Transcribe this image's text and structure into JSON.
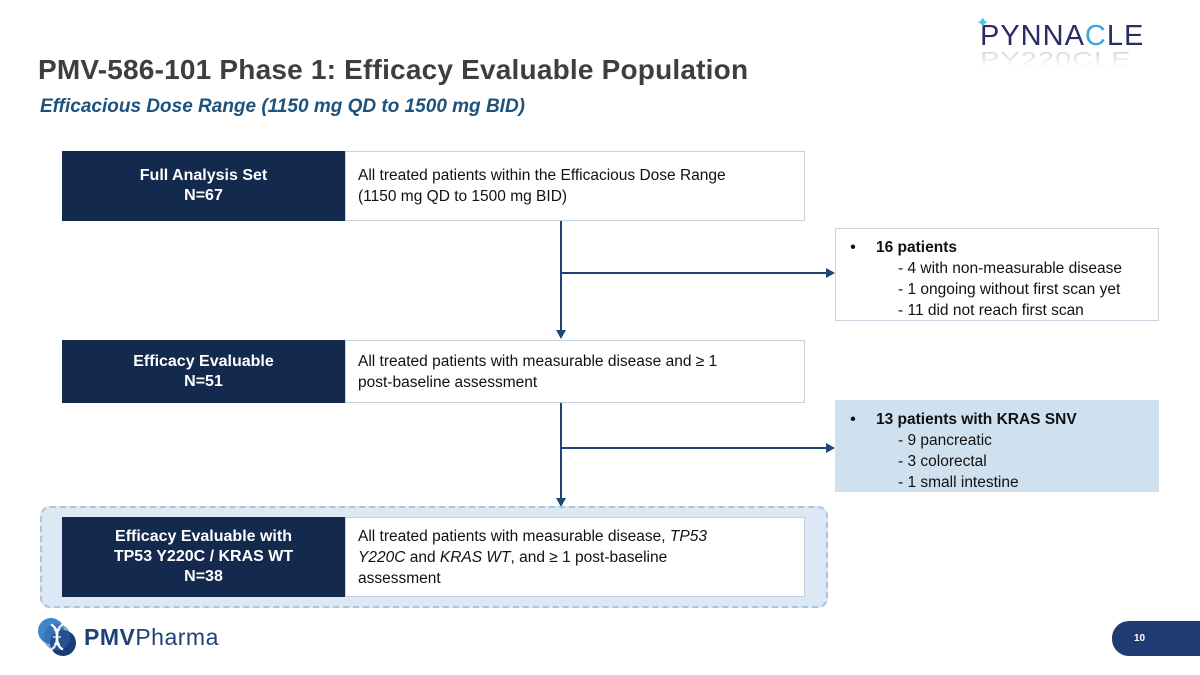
{
  "slide": {
    "title": "PMV-586-101 Phase 1: Efficacy Evaluable Population",
    "subtitle": "Efficacious Dose Range (1150 mg QD to 1500 mg BID)",
    "page_number": "10"
  },
  "logos": {
    "pynnacle": {
      "sparkle": "✦",
      "part1": "PYNNA",
      "part2": "C",
      "part3": "LE",
      "reflection": "PY220CLE"
    },
    "pmv": {
      "bold": "PMV",
      "regular": "Pharma"
    }
  },
  "flow": {
    "rows": [
      {
        "label_lines": [
          "Full Analysis Set",
          "N=67"
        ],
        "desc_lines": [
          [
            {
              "t": "All treated patients within the Efficacious Dose Range"
            }
          ],
          [
            {
              "t": "(1150 mg QD to 1500 mg BID)"
            }
          ]
        ]
      },
      {
        "label_lines": [
          "Efficacy Evaluable",
          "N=51"
        ],
        "desc_lines": [
          [
            {
              "t": "All treated patients with measurable disease and ≥ 1"
            }
          ],
          [
            {
              "t": "post-baseline assessment"
            }
          ]
        ]
      },
      {
        "label_lines": [
          "Efficacy Evaluable with",
          "TP53 Y220C / KRAS WT",
          "N=38"
        ],
        "desc_lines": [
          [
            {
              "t": "All treated patients with measurable disease, "
            },
            {
              "t": "TP53",
              "i": true
            }
          ],
          [
            {
              "t": "Y220C",
              "i": true
            },
            {
              "t": " and "
            },
            {
              "t": "KRAS WT",
              "i": true
            },
            {
              "t": ", and ≥ 1 post-baseline"
            }
          ],
          [
            {
              "t": "assessment"
            }
          ]
        ]
      }
    ],
    "callouts": [
      {
        "bullet": "•",
        "heading": "16 patients",
        "items": [
          "- 4 with non-measurable disease",
          "- 1 ongoing without first scan yet",
          "- 11 did not reach first scan"
        ]
      },
      {
        "bullet": "•",
        "heading": "13 patients with KRAS SNV",
        "items": [
          "- 9 pancreatic",
          "- 3 colorectal",
          "- 1 small intestine"
        ]
      }
    ]
  },
  "colors": {
    "navy_box": "#14294e",
    "arrow": "#1f4574",
    "callout_blue": "#cfe0ee",
    "dashed_fill": "#dce8f4",
    "dashed_border": "#a9c6e0",
    "title_text": "#3e3e3e",
    "subtitle_text": "#1d527d",
    "page_pill": "#1e3b72",
    "pynnacle_navy": "#2a2c63",
    "pynnacle_c_blue": "#3fa3dc"
  }
}
